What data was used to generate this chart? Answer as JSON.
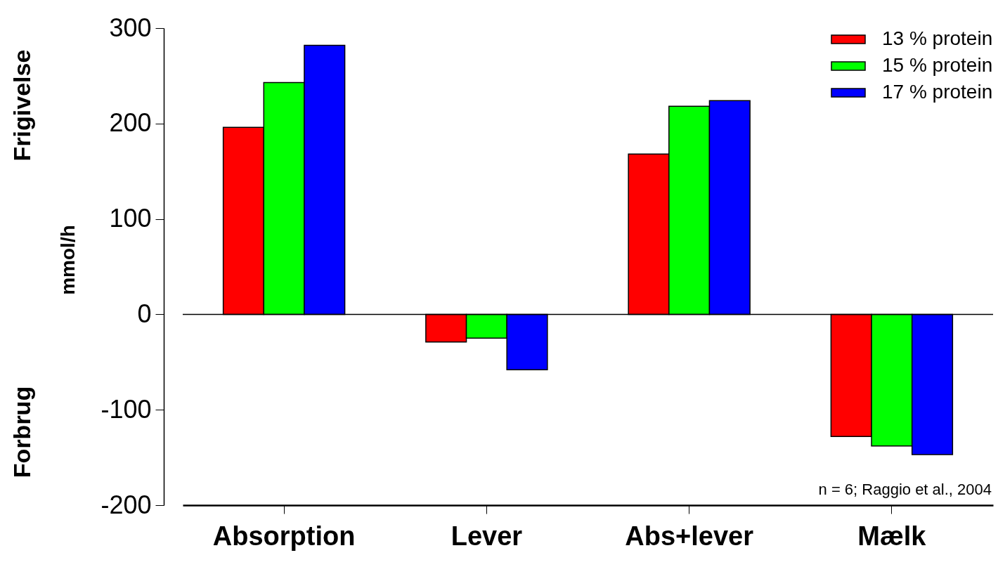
{
  "chart_data": {
    "type": "bar",
    "ylabel": "mmol/h",
    "categories": [
      "Absorption",
      "Lever",
      "Abs+lever",
      "Mælk"
    ],
    "series": [
      {
        "name": "13 % protein",
        "color": "#ff0000",
        "values": [
          196,
          -29,
          168,
          -128
        ]
      },
      {
        "name": "15 % protein",
        "color": "#00ff00",
        "values": [
          243,
          -25,
          218,
          -138
        ]
      },
      {
        "name": "17 % protein",
        "color": "#0000ff",
        "values": [
          282,
          -58,
          224,
          -147
        ]
      }
    ],
    "ylim": [
      -200,
      300
    ],
    "yticks": [
      -200,
      -100,
      0,
      100,
      200,
      300
    ],
    "ref_lines": [
      {
        "axis": "y",
        "value": 0
      }
    ],
    "annotations": [
      "Frigivelse",
      "Forbrug",
      "n = 6; Raggio et al., 2004"
    ],
    "grid": false,
    "legend": "top right"
  }
}
